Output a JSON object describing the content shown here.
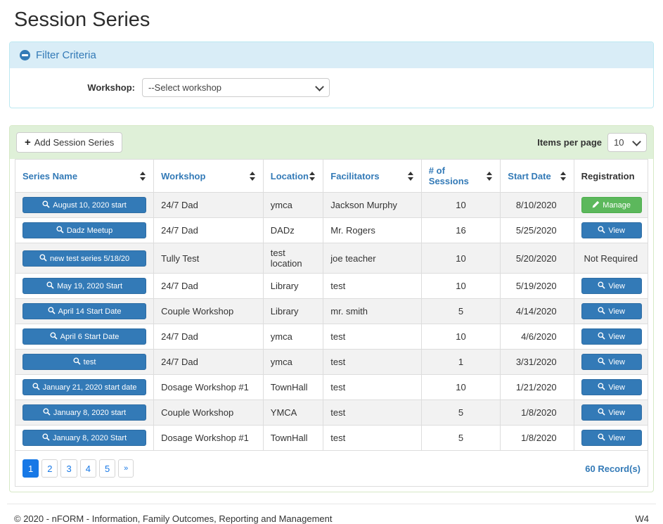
{
  "page": {
    "title": "Session Series"
  },
  "filter_panel": {
    "title": "Filter Criteria",
    "workshop": {
      "label": "Workshop:",
      "selected_option": "--Select workshop"
    }
  },
  "table_panel": {
    "add_button_icon": "+",
    "add_button_label": "Add Session Series",
    "items_per_page": {
      "label": "Items per page",
      "value": "10"
    },
    "columns": [
      {
        "label": "Series Name",
        "sortable": true
      },
      {
        "label": "Workshop",
        "sortable": true
      },
      {
        "label": "Location",
        "sortable": true
      },
      {
        "label": "Facilitators",
        "sortable": true
      },
      {
        "label": "# of Sessions",
        "sortable": true
      },
      {
        "label": "Start Date",
        "sortable": true
      },
      {
        "label": "Registration",
        "sortable": false
      }
    ],
    "rows": [
      {
        "series_name": "August 10, 2020 start",
        "workshop": "24/7 Dad",
        "location": "ymca",
        "facilitators": "Jackson Murphy",
        "sessions": "10",
        "start_date": "8/10/2020",
        "registration": {
          "type": "manage-button",
          "label": "Manage"
        }
      },
      {
        "series_name": "Dadz Meetup",
        "workshop": "24/7 Dad",
        "location": "DADz",
        "facilitators": "Mr. Rogers",
        "sessions": "16",
        "start_date": "5/25/2020",
        "registration": {
          "type": "view-button",
          "label": "View"
        }
      },
      {
        "series_name": "new test series 5/18/20",
        "workshop": "Tully Test",
        "location": "test location",
        "facilitators": "joe teacher",
        "sessions": "10",
        "start_date": "5/20/2020",
        "registration": {
          "type": "text",
          "label": "Not Required"
        }
      },
      {
        "series_name": "May 19, 2020 Start",
        "workshop": "24/7 Dad",
        "location": "Library",
        "facilitators": "test",
        "sessions": "10",
        "start_date": "5/19/2020",
        "registration": {
          "type": "view-button",
          "label": "View"
        }
      },
      {
        "series_name": "April 14 Start Date",
        "workshop": "Couple Workshop",
        "location": "Library",
        "facilitators": "mr. smith",
        "sessions": "5",
        "start_date": "4/14/2020",
        "registration": {
          "type": "view-button",
          "label": "View"
        }
      },
      {
        "series_name": "April 6 Start Date",
        "workshop": "24/7 Dad",
        "location": "ymca",
        "facilitators": "test",
        "sessions": "10",
        "start_date": "4/6/2020",
        "registration": {
          "type": "view-button",
          "label": "View"
        }
      },
      {
        "series_name": "test",
        "workshop": "24/7 Dad",
        "location": "ymca",
        "facilitators": "test",
        "sessions": "1",
        "start_date": "3/31/2020",
        "registration": {
          "type": "view-button",
          "label": "View"
        }
      },
      {
        "series_name": "January 21, 2020 start date",
        "workshop": "Dosage Workshop #1",
        "location": "TownHall",
        "facilitators": "test",
        "sessions": "10",
        "start_date": "1/21/2020",
        "registration": {
          "type": "view-button",
          "label": "View"
        }
      },
      {
        "series_name": "January 8, 2020 start",
        "workshop": "Couple Workshop",
        "location": "YMCA",
        "facilitators": "test",
        "sessions": "5",
        "start_date": "1/8/2020",
        "registration": {
          "type": "view-button",
          "label": "View"
        }
      },
      {
        "series_name": "January 8, 2020 Start",
        "workshop": "Dosage Workshop #1",
        "location": "TownHall",
        "facilitators": "test",
        "sessions": "5",
        "start_date": "1/8/2020",
        "registration": {
          "type": "view-button",
          "label": "View"
        }
      }
    ],
    "pagination": {
      "pages": [
        "1",
        "2",
        "3",
        "4",
        "5"
      ],
      "active_page": "1",
      "next_label": "»",
      "record_count": "60 Record(s)"
    }
  },
  "footer": {
    "copyright": "© 2020 - nFORM - Information, Family Outcomes, Reporting and Management",
    "workstation": "W4"
  },
  "colors": {
    "primary_blue": "#337ab7",
    "success_green": "#5cb85c",
    "filter_header_bg": "#d9edf7",
    "filter_border": "#bce8f1",
    "toolbar_green_bg": "#dff0d8",
    "table_panel_border": "#d6e9c6",
    "row_stripe_gray": "#f2f2f2",
    "pagination_active_blue": "#1778e6"
  }
}
